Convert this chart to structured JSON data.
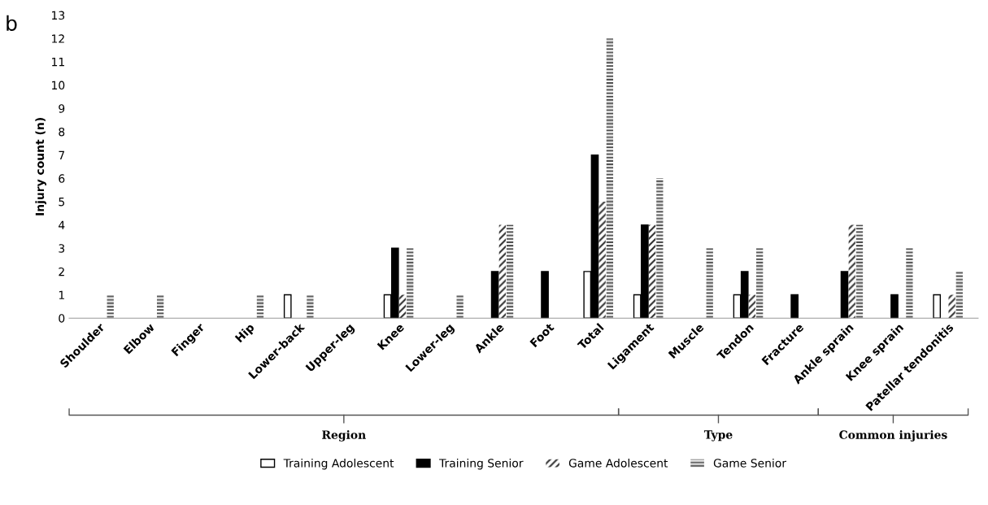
{
  "chart_data": {
    "type": "bar",
    "ylabel": "Injury count (n)",
    "categories": [
      "Shoulder",
      "Elbow",
      "Finger",
      "Hip",
      "Lower-back",
      "Upper-leg",
      "Knee",
      "Lower-leg",
      "Ankle",
      "Foot",
      "Total",
      "Ligament",
      "Muscle",
      "Tendon",
      "Fracture",
      "Ankle sprain",
      "Knee sprain",
      "Patellar tendonitis"
    ],
    "series": [
      {
        "name": "Training Adolescent",
        "color": "#ffffff",
        "values": [
          0,
          0,
          0,
          0,
          1,
          0,
          1,
          0,
          0,
          0,
          2,
          1,
          0,
          1,
          0,
          0,
          0,
          1
        ]
      },
      {
        "name": "Training Senior",
        "color": "#000000",
        "values": [
          0,
          0,
          0,
          0,
          0,
          0,
          3,
          0,
          2,
          2,
          7,
          4,
          0,
          2,
          1,
          2,
          1,
          0
        ]
      },
      {
        "name": "Game Adolescent",
        "color": "#303030",
        "values": [
          0,
          0,
          0,
          0,
          0,
          0,
          1,
          0,
          4,
          0,
          5,
          4,
          0,
          1,
          0,
          4,
          0,
          1
        ]
      },
      {
        "name": "Game Senior",
        "color": "#505050",
        "values": [
          1,
          1,
          0,
          1,
          1,
          0,
          3,
          1,
          4,
          0,
          12,
          6,
          3,
          3,
          0,
          4,
          3,
          2
        ]
      }
    ],
    "ylim": [
      0,
      13
    ],
    "yticks": [
      0,
      1,
      2,
      3,
      4,
      5,
      6,
      7,
      8,
      9,
      10,
      11,
      12,
      13
    ],
    "grid": false,
    "legend": "bottom",
    "annotations": [
      "b",
      "Region",
      "Type",
      "Common injuries"
    ]
  }
}
